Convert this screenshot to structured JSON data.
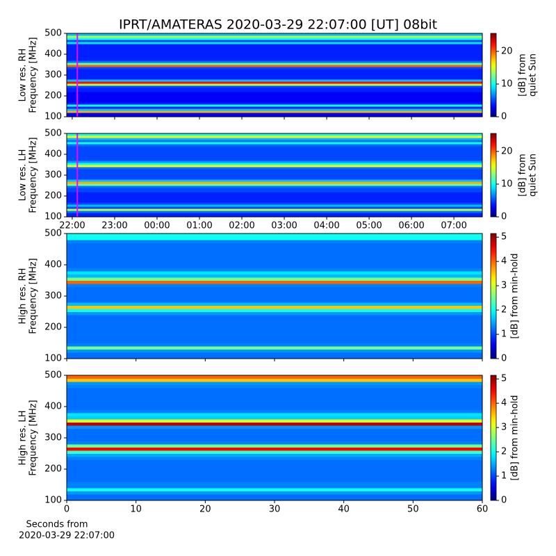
{
  "chart_data": [
    {
      "type": "heatmap",
      "title": "IPRT/AMATERAS 2020-03-29 22:07:00 [UT]   08bit",
      "ylabel": [
        "Low res. RH",
        "Frequency [MHz]"
      ],
      "zlabel": [
        "[dB] from",
        "quiet Sun"
      ],
      "colormap": "jet",
      "xlim": [
        -0.13,
        9.67
      ],
      "ylim": [
        100,
        500
      ],
      "yticks": [
        100,
        200,
        300,
        400,
        500
      ],
      "zlim": [
        0,
        25.5
      ],
      "zticks": [
        0,
        10,
        20
      ],
      "vline": {
        "x": 0.12,
        "color": "#ff00ff"
      },
      "y": [
        105,
        115,
        125,
        135,
        145,
        155,
        165,
        175,
        185,
        195,
        205,
        215,
        225,
        235,
        245,
        255,
        265,
        275,
        285,
        295,
        305,
        315,
        325,
        335,
        345,
        355,
        365,
        375,
        385,
        395,
        405,
        415,
        425,
        435,
        445,
        455,
        465,
        475,
        485,
        495
      ],
      "values": [
        3,
        3,
        18,
        8,
        4,
        10,
        4,
        3,
        3,
        3,
        3,
        3,
        4,
        4,
        5,
        14,
        22,
        8,
        4,
        4,
        4,
        4,
        4,
        5,
        20,
        12,
        6,
        4,
        4,
        4,
        4,
        4,
        4,
        4,
        4,
        9,
        5,
        10,
        14,
        8
      ]
    },
    {
      "type": "heatmap",
      "ylabel": [
        "Low res. LH",
        "Frequency [MHz]"
      ],
      "zlabel": [
        "[dB] from",
        "quiet Sun"
      ],
      "colormap": "jet",
      "xlim": [
        -0.13,
        9.67
      ],
      "ylim": [
        100,
        500
      ],
      "yticks": [
        100,
        200,
        300,
        400,
        500
      ],
      "zlim": [
        0,
        25.5
      ],
      "zticks": [
        0,
        10,
        20
      ],
      "vline": {
        "x": 0.12,
        "color": "#ff00ff"
      },
      "xticks": [
        {
          "value": 0,
          "label": "22:00"
        },
        {
          "value": 1,
          "label": "23:00"
        },
        {
          "value": 2,
          "label": "00:00"
        },
        {
          "value": 3,
          "label": "01:00"
        },
        {
          "value": 4,
          "label": "02:00"
        },
        {
          "value": 5,
          "label": "03:00"
        },
        {
          "value": 6,
          "label": "04:00"
        },
        {
          "value": 7,
          "label": "05:00"
        },
        {
          "value": 8,
          "label": "06:00"
        },
        {
          "value": 9,
          "label": "07:00"
        }
      ],
      "y": [
        105,
        115,
        125,
        135,
        145,
        155,
        165,
        175,
        185,
        195,
        205,
        215,
        225,
        235,
        245,
        255,
        265,
        275,
        285,
        295,
        305,
        315,
        325,
        335,
        345,
        355,
        365,
        375,
        385,
        395,
        405,
        415,
        425,
        435,
        445,
        455,
        465,
        475,
        485,
        495
      ],
      "values": [
        4,
        4,
        6,
        14,
        5,
        8,
        5,
        4,
        4,
        4,
        4,
        4,
        5,
        5,
        6,
        12,
        18,
        8,
        5,
        5,
        5,
        5,
        5,
        6,
        16,
        10,
        7,
        5,
        5,
        5,
        5,
        5,
        5,
        5,
        6,
        10,
        6,
        8,
        16,
        10
      ]
    },
    {
      "type": "heatmap",
      "ylabel": [
        "High res. RH",
        "Frequency [MHz]"
      ],
      "zlabel": [
        "[dB] from min-hold"
      ],
      "colormap": "jet",
      "xlim": [
        0,
        60
      ],
      "ylim": [
        100,
        500
      ],
      "yticks": [
        100,
        200,
        300,
        400,
        500
      ],
      "zlim": [
        0,
        5.15
      ],
      "zticks": [
        0,
        1,
        2,
        3,
        4,
        5
      ],
      "y": [
        105,
        115,
        125,
        135,
        145,
        155,
        165,
        175,
        185,
        195,
        205,
        215,
        225,
        235,
        245,
        255,
        265,
        275,
        285,
        295,
        305,
        315,
        325,
        335,
        345,
        355,
        365,
        375,
        385,
        395,
        405,
        415,
        425,
        435,
        445,
        455,
        465,
        475,
        485,
        495
      ],
      "values": [
        1.2,
        1.2,
        1.4,
        2.5,
        1.3,
        1.2,
        1.2,
        1.2,
        1.2,
        1.2,
        1.2,
        1.2,
        1.2,
        1.2,
        1.4,
        2,
        3.5,
        1.6,
        1.2,
        1.2,
        1.2,
        1.2,
        1.2,
        1.3,
        4,
        2.5,
        1.6,
        1.8,
        1.3,
        1.2,
        1.2,
        1.2,
        1.2,
        1.2,
        1.2,
        1.2,
        1.2,
        1.3,
        2,
        2
      ]
    },
    {
      "type": "heatmap",
      "ylabel": [
        "High res. LH",
        "Frequency [MHz]"
      ],
      "zlabel": [
        "[dB] from min-hold"
      ],
      "colormap": "jet",
      "xlim": [
        0,
        60
      ],
      "ylim": [
        100,
        500
      ],
      "yticks": [
        100,
        200,
        300,
        400,
        500
      ],
      "zlim": [
        0,
        5.15
      ],
      "zticks": [
        0,
        1,
        2,
        3,
        4,
        5
      ],
      "xticks": [
        0,
        10,
        20,
        30,
        40,
        50,
        60
      ],
      "xlabel": [
        "Seconds from",
        "2020-03-29 22:07:00"
      ],
      "y": [
        105,
        115,
        125,
        135,
        145,
        155,
        165,
        175,
        185,
        195,
        205,
        215,
        225,
        235,
        245,
        255,
        265,
        275,
        285,
        295,
        305,
        315,
        325,
        335,
        345,
        355,
        365,
        375,
        385,
        395,
        405,
        415,
        425,
        435,
        445,
        455,
        465,
        475,
        485,
        495
      ],
      "values": [
        1.2,
        1.2,
        1.4,
        2,
        1.3,
        1.3,
        1.2,
        1.2,
        1.2,
        1.2,
        1.2,
        1.2,
        1.2,
        1.3,
        1.5,
        2.2,
        4.5,
        2.5,
        1.3,
        1.2,
        1.2,
        1.2,
        1.2,
        1.4,
        4.8,
        3,
        1.7,
        1.8,
        1.3,
        1.2,
        1.2,
        1.2,
        1.2,
        1.2,
        1.2,
        1.2,
        1.3,
        1.4,
        3.5,
        4
      ]
    }
  ]
}
